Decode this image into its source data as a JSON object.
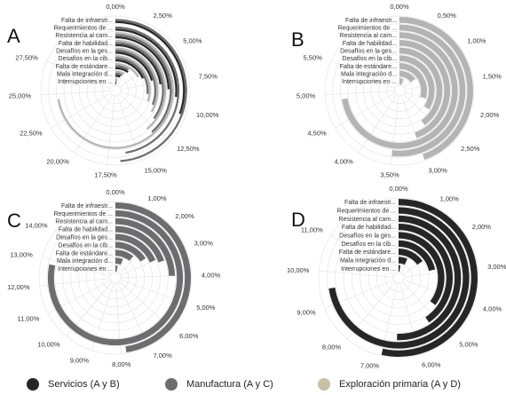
{
  "categories": [
    "Falta de infraestr...",
    "Requerimientos de ...",
    "Resistencia al cam...",
    "Falta de habilidad...",
    "Desafíos en la ges...",
    "Desafíos en la cib...",
    "Falta de estándare...",
    "Mala integración d...",
    "Interrupciones en ..."
  ],
  "legend": [
    {
      "label": "Servicios (A y B)",
      "color": "#262626"
    },
    {
      "label": "Manufactura (A y C)",
      "color": "#6d6d70"
    },
    {
      "label": "Exploración primaria (A y D)",
      "color": "#c8bfa6"
    }
  ],
  "chart_data": [
    {
      "type": "radial-bar",
      "panel_label": "A",
      "tick_labels": [
        "0,00%",
        "2,50%",
        "5,00%",
        "7,50%",
        "10,00%",
        "12,50%",
        "15,00%",
        "17,50%",
        "20,00%",
        "22,50%",
        "25,00%",
        "27,50%"
      ],
      "tick_values": [
        0,
        2.5,
        5,
        7.5,
        10,
        12.5,
        15,
        17.5,
        20,
        22.5,
        25,
        27.5
      ],
      "max": 30,
      "categories": [
        "Falta de infraestr...",
        "Requerimientos de ...",
        "Resistencia al cam...",
        "Falta de habilidad...",
        "Desafíos en la ges...",
        "Desafíos en la cib...",
        "Falta de estándare...",
        "Mala integración d...",
        "Interrupciones en ..."
      ],
      "series": [
        {
          "color": "#262626",
          "values": [
            10.3,
            9.0,
            8.3,
            7.7,
            7.0,
            6.2,
            3.2,
            1.8,
            0.6
          ]
        },
        {
          "color": "#6d6d70",
          "values": [
            16.5,
            16.0,
            13.0,
            11.8,
            10.4,
            9.0,
            3.0,
            2.2,
            0.7
          ]
        },
        {
          "color": "#b4b4b4",
          "values": [
            0,
            0,
            24.5,
            13.2,
            11.3,
            10.2,
            5.6,
            2.6,
            1.0
          ]
        }
      ]
    },
    {
      "type": "radial-bar",
      "panel_label": "B",
      "tick_labels": [
        "0,00%",
        "0,50%",
        "1,00%",
        "1,50%",
        "2,00%",
        "2,50%",
        "3,00%",
        "3,50%",
        "4,00%",
        "4,50%",
        "5,00%",
        "5,50%"
      ],
      "tick_values": [
        0,
        0.5,
        1,
        1.5,
        2,
        2.5,
        3,
        3.5,
        4,
        4.5,
        5,
        5.5
      ],
      "max": 6,
      "categories": [
        "Falta de infraestr...",
        "Requerimientos de ...",
        "Resistencia al cam...",
        "Falta de habilidad...",
        "Desafíos en la ges...",
        "Desafíos en la cib...",
        "Falta de estándare...",
        "Mala integración d...",
        "Interrupciones en ..."
      ],
      "series": [
        {
          "color": "#b4b4b4",
          "values": [
            3.0,
            3.5,
            4.9,
            3.0,
            2.7,
            2.3,
            2.0,
            1.0,
            0.35
          ]
        }
      ]
    },
    {
      "type": "radial-bar",
      "panel_label": "C",
      "tick_labels": [
        "0,00%",
        "1,00%",
        "2,00%",
        "3,00%",
        "4,00%",
        "5,00%",
        "6,00%",
        "7,00%",
        "8,00%",
        "9,00%",
        "10,00%",
        "11,00%",
        "12,00%",
        "13,00%",
        "14,00%"
      ],
      "tick_values": [
        0,
        1,
        2,
        3,
        4,
        5,
        6,
        7,
        8,
        9,
        10,
        11,
        12,
        13,
        14
      ],
      "max": 15,
      "categories": [
        "Falta de infraestr...",
        "Requerimientos de ...",
        "Resistencia al cam...",
        "Falta de habilidad...",
        "Desafíos en la ges...",
        "Desafíos en la cib...",
        "Falta de estándare...",
        "Mala integración d...",
        "Interrupciones en ..."
      ],
      "series": [
        {
          "color": "#6d6d70",
          "values": [
            7.8,
            12.8,
            4.0,
            3.2,
            3.0,
            2.6,
            1.8,
            1.0,
            0.5
          ]
        }
      ]
    },
    {
      "type": "radial-bar",
      "panel_label": "D",
      "tick_labels": [
        "0,00%",
        "1,00%",
        "2,00%",
        "3,00%",
        "4,00%",
        "5,00%",
        "6,00%",
        "7,00%",
        "8,00%",
        "9,00%",
        "10,00%",
        "11,00%"
      ],
      "tick_values": [
        0,
        1,
        2,
        3,
        4,
        5,
        6,
        7,
        8,
        9,
        10,
        11
      ],
      "max": 12,
      "categories": [
        "Falta de infraestr...",
        "Requerimientos de ...",
        "Resistencia al cam...",
        "Falta de habilidad...",
        "Desafíos en la ges...",
        "Desafíos en la cib...",
        "Falta de estándare...",
        "Mala integración d...",
        "Interrupciones en ..."
      ],
      "series": [
        {
          "color": "#262626",
          "values": [
            7.0,
            9.5,
            6.6,
            5.3,
            4.6,
            2.8,
            2.0,
            0.9,
            0.3
          ]
        }
      ]
    }
  ]
}
